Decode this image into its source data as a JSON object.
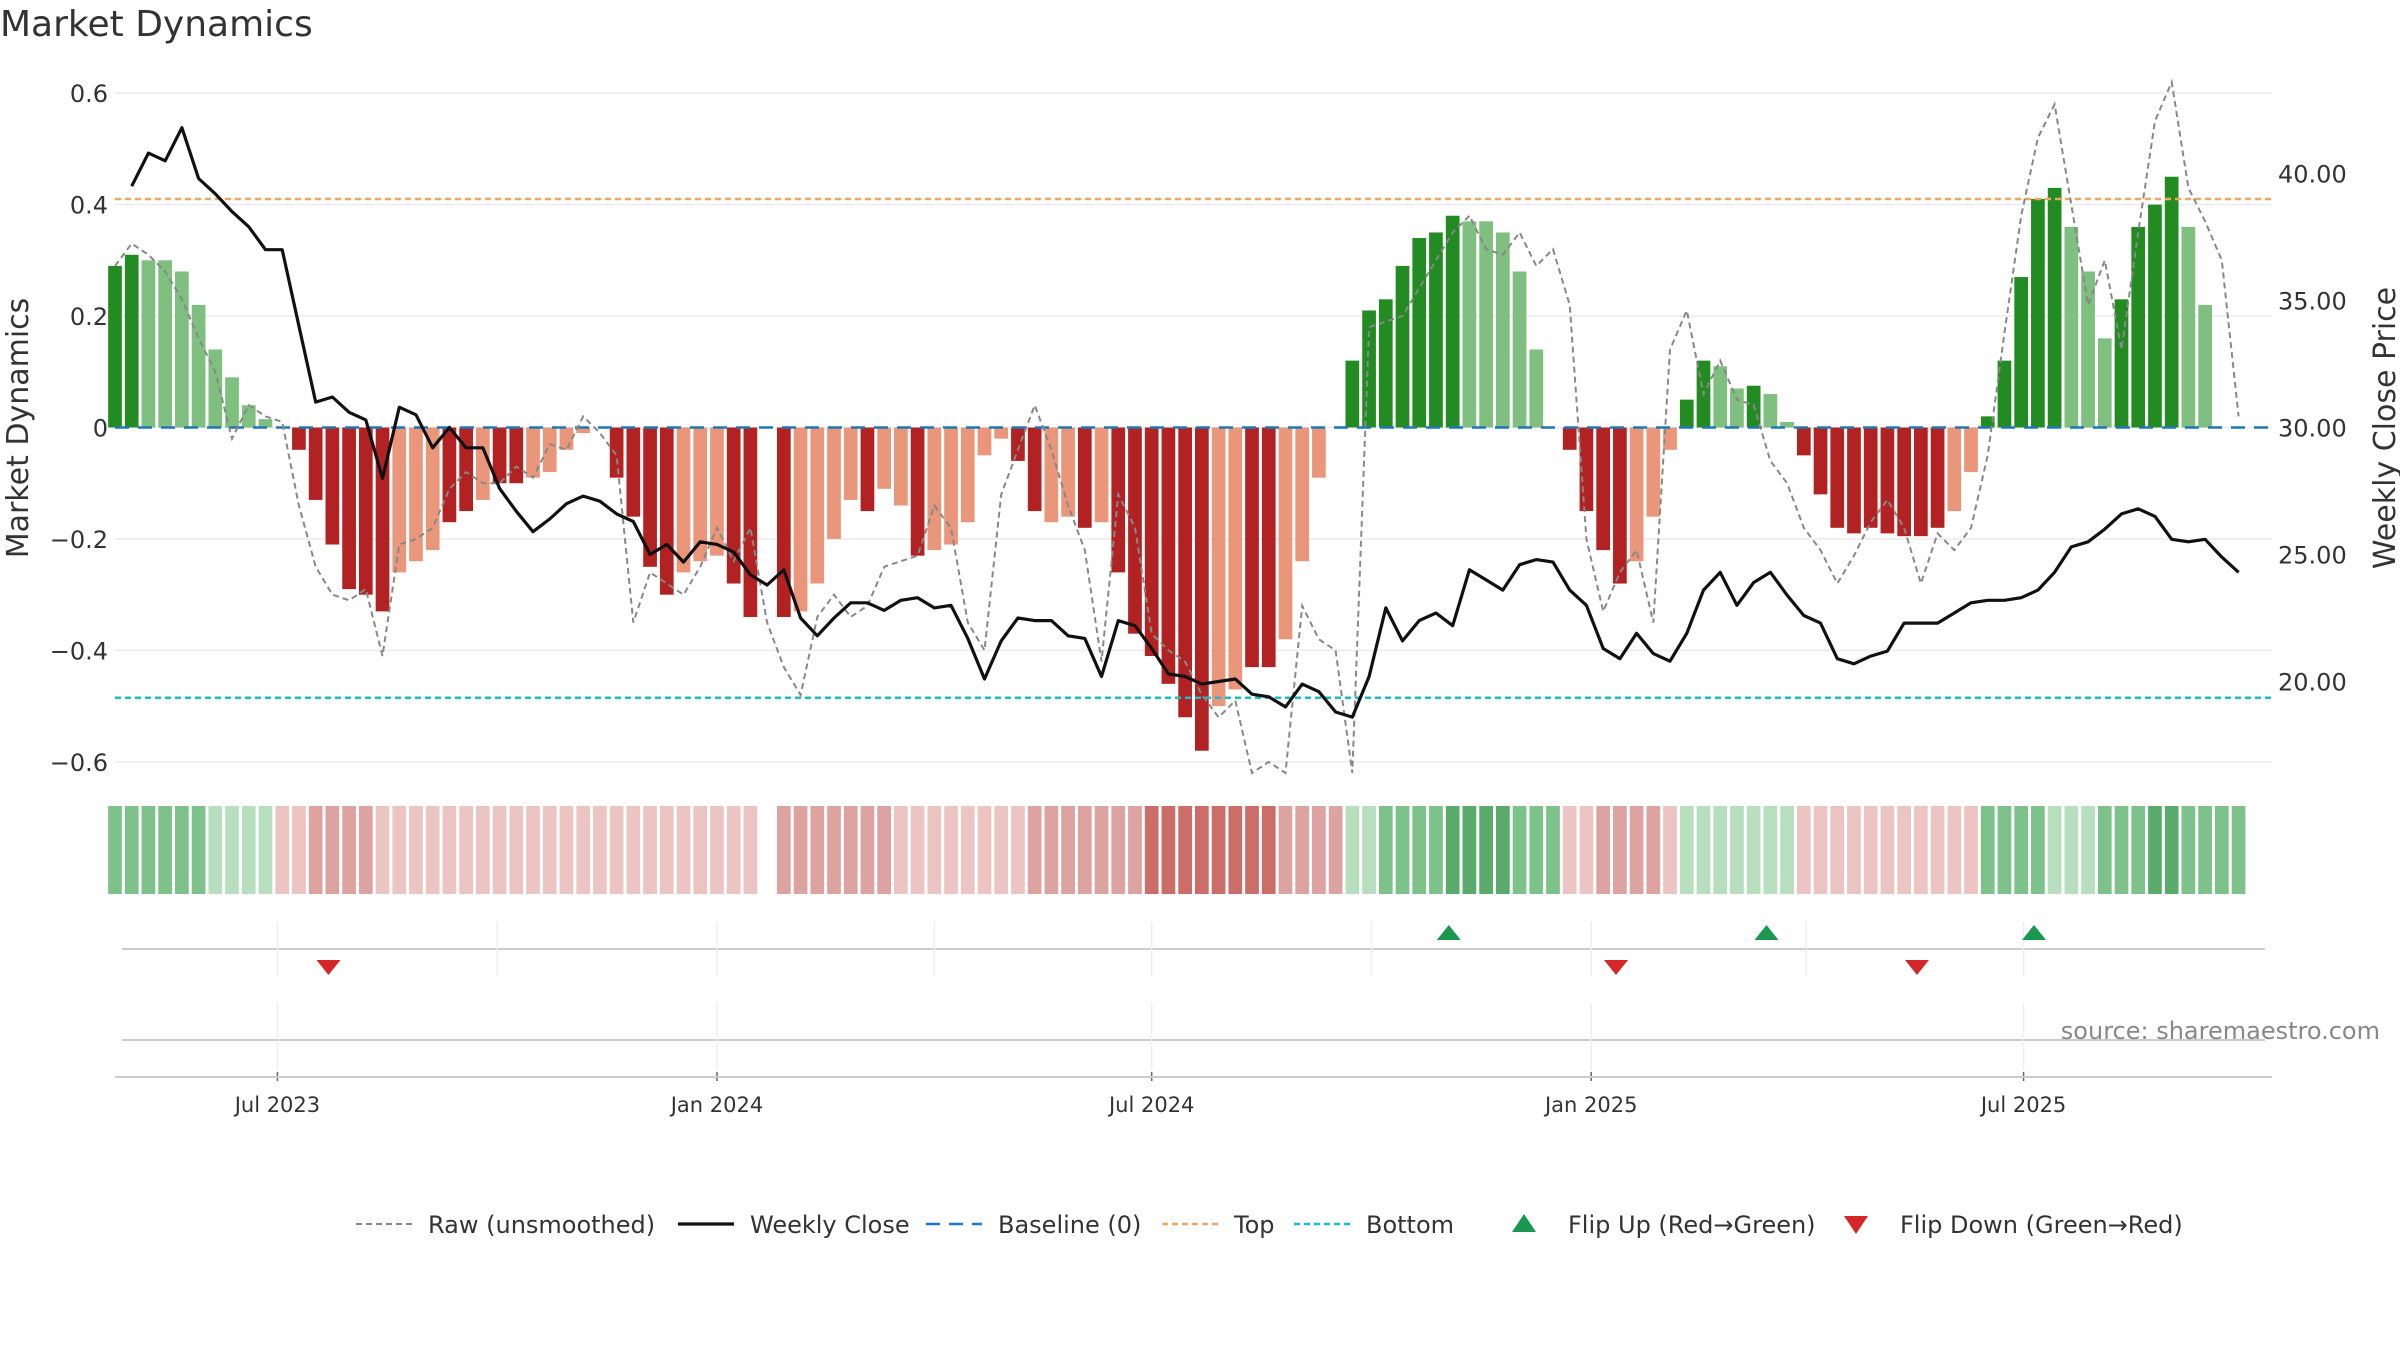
{
  "chart_data": {
    "type": "bar",
    "title": "Market Dynamics",
    "ylabel": "Market Dynamics",
    "ylabel_right": "Weekly Close Price",
    "ylim": [
      -0.62,
      0.62
    ],
    "ylim_right": [
      16.4,
      43.6
    ],
    "yticks": [
      -0.6,
      -0.4,
      -0.2,
      0,
      0.2,
      0.4,
      0.6
    ],
    "yticks_labels": [
      "−0.6",
      "−0.4",
      "−0.2",
      "0",
      "0.2",
      "0.4",
      "0.6"
    ],
    "yticks_right": [
      20,
      25,
      30,
      35,
      40
    ],
    "yticks_right_labels": [
      "20.00",
      "25.00",
      "30.00",
      "35.00",
      "40.00"
    ],
    "x_start": "2023-04-24",
    "x_end": "2025-10-13",
    "xticks": [
      {
        "date": "2023-07-01",
        "label": "Jul 2023"
      },
      {
        "date": "2024-01-01",
        "label": "Jan 2024"
      },
      {
        "date": "2024-07-01",
        "label": "Jul 2024"
      },
      {
        "date": "2025-01-01",
        "label": "Jan 2025"
      },
      {
        "date": "2025-07-01",
        "label": "Jul 2025"
      }
    ],
    "top_level": 0.41,
    "bottom_level": -0.485,
    "baseline": 0,
    "colors": {
      "strong_green": "#228b22",
      "light_green": "#7fbf7f",
      "strong_red": "#b22222",
      "light_red": "#e9967a",
      "close": "#111111",
      "raw": "#888888",
      "baseline": "#1f77b4",
      "top": "#f4a460",
      "bottom": "#17becf",
      "flip_up": "#1a9850",
      "flip_down": "#d62728"
    },
    "series": [
      {
        "name": "Market Dynamics",
        "dates": [
          "2023-04-24",
          "2023-05-01",
          "2023-05-08",
          "2023-05-15",
          "2023-05-22",
          "2023-05-29",
          "2023-06-05",
          "2023-06-12",
          "2023-06-19",
          "2023-06-26",
          "2023-07-03",
          "2023-07-10",
          "2023-07-17",
          "2023-07-24",
          "2023-07-31",
          "2023-08-07",
          "2023-08-14",
          "2023-08-21",
          "2023-08-28",
          "2023-09-04",
          "2023-09-11",
          "2023-09-18",
          "2023-09-25",
          "2023-10-02",
          "2023-10-09",
          "2023-10-16",
          "2023-10-23",
          "2023-10-30",
          "2023-11-06",
          "2023-11-13",
          "2023-11-20",
          "2023-11-27",
          "2023-12-04",
          "2023-12-11",
          "2023-12-18",
          "2023-12-25",
          "2024-01-01",
          "2024-01-08",
          "2024-01-15",
          "2024-01-22",
          "2024-01-29",
          "2024-02-05",
          "2024-02-12",
          "2024-02-19",
          "2024-02-26",
          "2024-03-04",
          "2024-03-11",
          "2024-03-18",
          "2024-03-25",
          "2024-04-01",
          "2024-04-08",
          "2024-04-15",
          "2024-04-22",
          "2024-04-29",
          "2024-05-06",
          "2024-05-13",
          "2024-05-20",
          "2024-05-27",
          "2024-06-03",
          "2024-06-10",
          "2024-06-17",
          "2024-06-24",
          "2024-07-01",
          "2024-07-08",
          "2024-07-15",
          "2024-07-22",
          "2024-07-29",
          "2024-08-05",
          "2024-08-12",
          "2024-08-19",
          "2024-08-26",
          "2024-09-02",
          "2024-09-09",
          "2024-09-16",
          "2024-09-23",
          "2024-09-30",
          "2024-10-07",
          "2024-10-14",
          "2024-10-21",
          "2024-10-28",
          "2024-11-04",
          "2024-11-11",
          "2024-11-18",
          "2024-11-25",
          "2024-12-02",
          "2024-12-09",
          "2024-12-16",
          "2024-12-23",
          "2024-12-30",
          "2025-01-06",
          "2025-01-13",
          "2025-01-20",
          "2025-01-27",
          "2025-02-03",
          "2025-02-10",
          "2025-02-17",
          "2025-02-24",
          "2025-03-03",
          "2025-03-10",
          "2025-03-17",
          "2025-03-24",
          "2025-03-31",
          "2025-04-07",
          "2025-04-14",
          "2025-04-21",
          "2025-04-28",
          "2025-05-05",
          "2025-05-12",
          "2025-05-19",
          "2025-05-26",
          "2025-06-02",
          "2025-06-09",
          "2025-06-16",
          "2025-06-23",
          "2025-06-30",
          "2025-07-07",
          "2025-07-14",
          "2025-07-21",
          "2025-07-28",
          "2025-08-04",
          "2025-08-11",
          "2025-08-18",
          "2025-08-25",
          "2025-09-01",
          "2025-09-08",
          "2025-09-15",
          "2025-09-22",
          "2025-09-29",
          "2025-10-06",
          "2025-10-13"
        ],
        "values": [
          0.29,
          0.31,
          0.3,
          0.3,
          0.28,
          0.22,
          0.14,
          0.09,
          0.04,
          0.015,
          null,
          -0.04,
          -0.13,
          -0.21,
          -0.29,
          -0.3,
          -0.33,
          -0.26,
          -0.24,
          -0.22,
          -0.17,
          -0.15,
          -0.13,
          -0.1,
          -0.1,
          -0.09,
          -0.08,
          -0.04,
          -0.01,
          null,
          -0.09,
          -0.16,
          -0.25,
          -0.3,
          -0.26,
          -0.24,
          -0.23,
          -0.28,
          -0.34,
          null,
          -0.34,
          -0.33,
          -0.28,
          -0.2,
          -0.13,
          -0.15,
          -0.11,
          -0.14,
          -0.23,
          -0.22,
          -0.21,
          -0.17,
          -0.05,
          -0.02,
          -0.06,
          -0.15,
          -0.17,
          -0.16,
          -0.18,
          -0.17,
          -0.26,
          -0.37,
          -0.41,
          -0.46,
          -0.52,
          -0.58,
          -0.5,
          -0.47,
          -0.43,
          -0.43,
          -0.38,
          -0.24,
          -0.09,
          null,
          0.12,
          0.21,
          0.23,
          0.29,
          0.34,
          0.35,
          0.38,
          0.37,
          0.37,
          0.35,
          0.28,
          0.14,
          null,
          -0.04,
          -0.15,
          -0.22,
          -0.28,
          -0.24,
          -0.16,
          -0.04,
          0.05,
          0.12,
          0.11,
          0.07,
          0.075,
          0.06,
          0.01,
          -0.05,
          -0.12,
          -0.18,
          -0.19,
          -0.18,
          -0.19,
          -0.195,
          -0.195,
          -0.18,
          -0.15,
          -0.08,
          0.02,
          0.12,
          0.27,
          0.41,
          0.43,
          0.36,
          0.28,
          0.16,
          0.23,
          0.36,
          0.4,
          0.45,
          0.36,
          0.22,
          null,
          null,
          null,
          null
        ],
        "tones": [
          "s",
          "s",
          "l",
          "l",
          "l",
          "l",
          "l",
          "l",
          "l",
          "l",
          "n",
          "s",
          "s",
          "s",
          "s",
          "s",
          "s",
          "l",
          "l",
          "l",
          "s",
          "s",
          "l",
          "s",
          "s",
          "l",
          "l",
          "l",
          "l",
          "n",
          "s",
          "s",
          "s",
          "s",
          "l",
          "l",
          "l",
          "s",
          "s",
          "n",
          "s",
          "l",
          "l",
          "l",
          "l",
          "s",
          "l",
          "l",
          "s",
          "l",
          "l",
          "l",
          "l",
          "l",
          "s",
          "s",
          "l",
          "l",
          "s",
          "l",
          "s",
          "s",
          "s",
          "s",
          "s",
          "s",
          "l",
          "l",
          "s",
          "s",
          "l",
          "l",
          "l",
          "n",
          "s",
          "s",
          "s",
          "s",
          "s",
          "s",
          "s",
          "l",
          "l",
          "l",
          "l",
          "l",
          "n",
          "s",
          "s",
          "s",
          "s",
          "l",
          "l",
          "l",
          "s",
          "s",
          "l",
          "l",
          "s",
          "l",
          "l",
          "s",
          "s",
          "s",
          "s",
          "s",
          "s",
          "s",
          "s",
          "s",
          "l",
          "l",
          "s",
          "s",
          "s",
          "s",
          "s",
          "l",
          "l",
          "l",
          "s",
          "s",
          "s",
          "s",
          "l",
          "l",
          "n",
          "n",
          "n",
          "n"
        ]
      },
      {
        "name": "Raw (unsmoothed)",
        "values": [
          0.29,
          0.33,
          0.31,
          0.28,
          0.23,
          0.16,
          0.1,
          -0.02,
          0.04,
          0.02,
          0.01,
          -0.14,
          -0.25,
          -0.3,
          -0.31,
          -0.29,
          -0.41,
          -0.21,
          -0.2,
          -0.18,
          -0.11,
          -0.08,
          -0.1,
          -0.1,
          -0.07,
          -0.09,
          -0.03,
          -0.04,
          0.02,
          -0.01,
          -0.05,
          -0.35,
          -0.26,
          -0.28,
          -0.3,
          -0.25,
          -0.18,
          -0.24,
          -0.18,
          -0.35,
          -0.43,
          -0.48,
          -0.34,
          -0.3,
          -0.34,
          -0.32,
          -0.25,
          -0.24,
          -0.23,
          -0.14,
          -0.18,
          -0.35,
          -0.4,
          -0.12,
          -0.04,
          0.04,
          -0.04,
          -0.14,
          -0.22,
          -0.42,
          -0.12,
          -0.18,
          -0.37,
          -0.4,
          -0.42,
          -0.48,
          -0.52,
          -0.49,
          -0.62,
          -0.6,
          -0.62,
          -0.32,
          -0.38,
          -0.4,
          -0.62,
          0.18,
          0.19,
          0.2,
          0.25,
          0.3,
          0.35,
          0.38,
          0.32,
          0.31,
          0.35,
          0.29,
          0.32,
          0.22,
          -0.2,
          -0.33,
          -0.26,
          -0.22,
          -0.35,
          0.14,
          0.21,
          0.06,
          0.12,
          0.05,
          0.04,
          -0.06,
          -0.1,
          -0.18,
          -0.22,
          -0.28,
          -0.23,
          -0.17,
          -0.13,
          -0.18,
          -0.28,
          -0.19,
          -0.22,
          -0.18,
          -0.05,
          0.17,
          0.38,
          0.52,
          0.58,
          0.4,
          0.22,
          0.3,
          0.14,
          0.35,
          0.55,
          0.62,
          0.43,
          0.37,
          0.3,
          0.02
        ],
        "values_offset": 0
      },
      {
        "name": "Weekly Close",
        "values": [
          39.5,
          40.8,
          40.5,
          41.8,
          39.8,
          39.2,
          38.5,
          37.9,
          37.0,
          37.0,
          34.0,
          31.0,
          31.2,
          30.6,
          30.3,
          28.0,
          30.8,
          30.5,
          29.2,
          30.0,
          29.2,
          29.2,
          27.6,
          26.7,
          25.9,
          26.4,
          27.0,
          27.3,
          27.1,
          26.6,
          26.3,
          25.0,
          25.4,
          24.7,
          25.5,
          25.4,
          25.1,
          24.2,
          23.8,
          24.4,
          22.5,
          21.8,
          22.5,
          23.1,
          23.1,
          22.8,
          23.2,
          23.3,
          22.9,
          23.0,
          21.7,
          20.1,
          21.6,
          22.5,
          22.4,
          22.4,
          21.8,
          21.7,
          20.2,
          22.4,
          22.2,
          21.3,
          20.3,
          20.2,
          19.9,
          20.0,
          20.1,
          19.5,
          19.4,
          19.0,
          19.9,
          19.6,
          18.8,
          18.6,
          20.2,
          22.9,
          21.6,
          22.4,
          22.7,
          22.2,
          24.4,
          24.0,
          23.6,
          24.6,
          24.8,
          24.7,
          23.6,
          23.0,
          21.3,
          20.9,
          21.9,
          21.1,
          20.8,
          21.9,
          23.6,
          24.3,
          23.0,
          23.9,
          24.3,
          23.4,
          22.6,
          22.3,
          20.9,
          20.7,
          21.0,
          21.2,
          22.3,
          22.3,
          22.3,
          22.7,
          23.1,
          23.2,
          23.2,
          23.3,
          23.6,
          24.3,
          25.3,
          25.5,
          26.0,
          26.6,
          26.8,
          26.5,
          25.6,
          25.5,
          25.6,
          24.9,
          24.3
        ],
        "values_offset": 1
      }
    ],
    "regime_strip": {
      "tones": [
        2,
        2,
        2,
        2,
        2,
        2,
        1,
        1,
        1,
        1,
        -1,
        -1,
        -2,
        -2,
        -2,
        -2,
        -1,
        -1,
        -1,
        -1,
        -1,
        -1,
        -1,
        -1,
        -1,
        -1,
        -1,
        -1,
        -1,
        -1,
        -1,
        -1,
        -1,
        -1,
        -1,
        -1,
        -1,
        -1,
        -1,
        0,
        -2,
        -2,
        -2,
        -2,
        -2,
        -2,
        -2,
        -1,
        -1,
        -1,
        -1,
        -1,
        -1,
        -1,
        -1,
        -2,
        -2,
        -2,
        -2,
        -2,
        -2,
        -2,
        -3,
        -3,
        -3,
        -3,
        -3,
        -3,
        -3,
        -3,
        -2,
        -2,
        -2,
        -2,
        1,
        1,
        2,
        2,
        2,
        2,
        3,
        3,
        3,
        3,
        2,
        2,
        2,
        -1,
        -1,
        -2,
        -2,
        -2,
        -2,
        -1,
        1,
        1,
        1,
        1,
        1,
        1,
        1,
        -1,
        -1,
        -1,
        -1,
        -1,
        -1,
        -1,
        -1,
        -1,
        -1,
        -1,
        2,
        2,
        2,
        2,
        1,
        1,
        1,
        2,
        2,
        2,
        3,
        3,
        2,
        2,
        2,
        2
      ]
    },
    "flips": [
      {
        "date": "2023-07-17",
        "dir": "down"
      },
      {
        "date": "2024-10-28",
        "dir": "up"
      },
      {
        "date": "2025-01-06",
        "dir": "down"
      },
      {
        "date": "2025-03-10",
        "dir": "up"
      },
      {
        "date": "2025-05-12",
        "dir": "down"
      },
      {
        "date": "2025-06-30",
        "dir": "up"
      }
    ],
    "legend_position": "bottom",
    "legend": [
      "Raw (unsmoothed)",
      "Weekly Close",
      "Baseline (0)",
      "Top",
      "Bottom",
      "Flip Up (Red→Green)",
      "Flip Down (Green→Red)"
    ],
    "source": "source: sharemaestro.com"
  }
}
